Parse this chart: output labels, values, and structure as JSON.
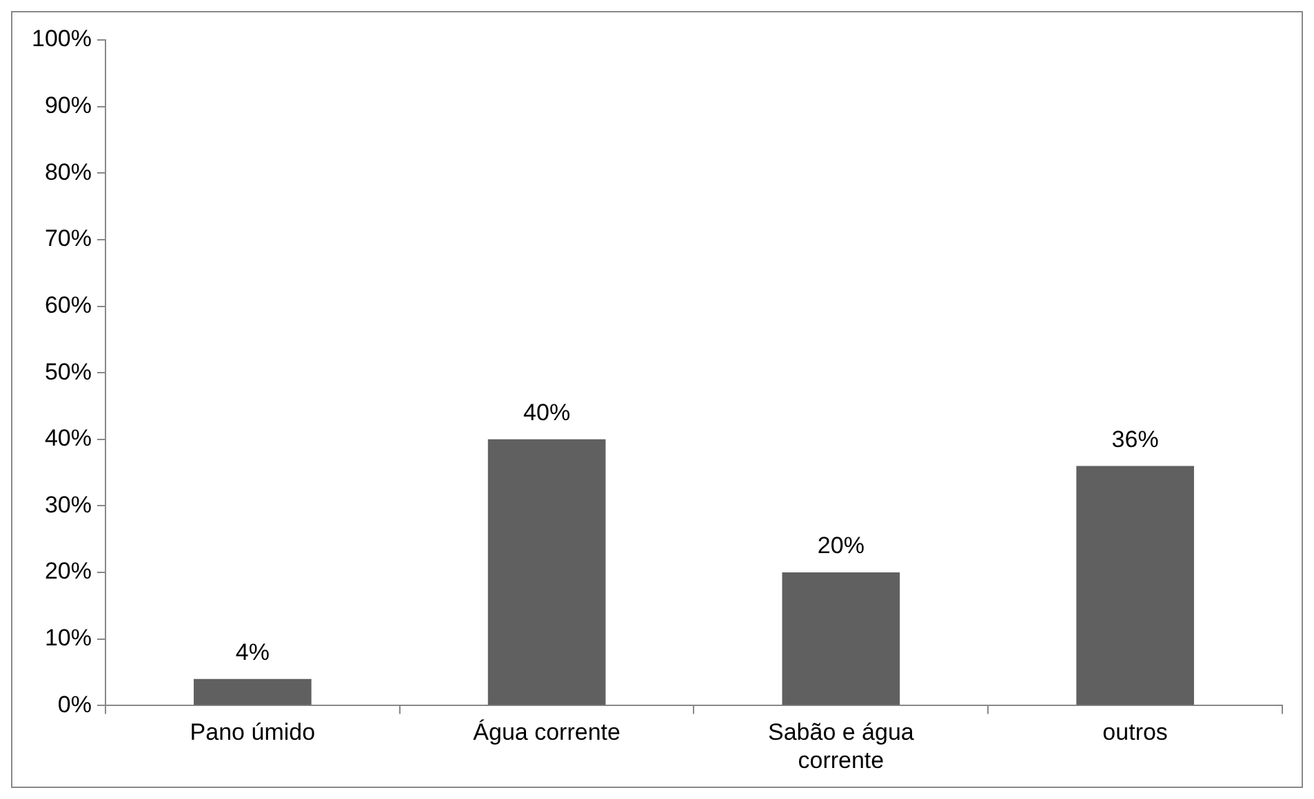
{
  "chart_data": {
    "type": "bar",
    "categories": [
      "Pano úmido",
      "Água corrente",
      "Sabão e água corrente",
      "outros"
    ],
    "values": [
      4,
      40,
      20,
      36
    ],
    "value_labels": [
      "4%",
      "40%",
      "20%",
      "36%"
    ],
    "color": "#606060",
    "ylim": [
      0,
      100
    ],
    "yticks": [
      {
        "value": 0,
        "label": "0%"
      },
      {
        "value": 10,
        "label": "10%"
      },
      {
        "value": 20,
        "label": "20%"
      },
      {
        "value": 30,
        "label": "30%"
      },
      {
        "value": 40,
        "label": "40%"
      },
      {
        "value": 50,
        "label": "50%"
      },
      {
        "value": 60,
        "label": "60%"
      },
      {
        "value": 70,
        "label": "70%"
      },
      {
        "value": 80,
        "label": "80%"
      },
      {
        "value": 90,
        "label": "90%"
      },
      {
        "value": 100,
        "label": "100%"
      }
    ],
    "grid": false,
    "legend": false
  }
}
